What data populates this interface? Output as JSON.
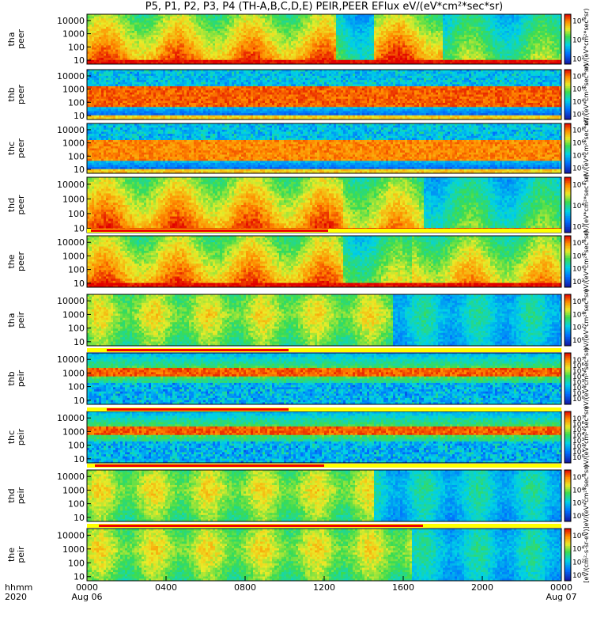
{
  "title": "P5, P1, P2, P3, P4 (TH-A,B,C,D,E) PEIR,PEER EFlux eV/(eV*cm²*sec*sr)",
  "chart_data": [
    {
      "type": "heatmap",
      "ylabel": [
        "tha",
        "peer"
      ],
      "colorbar_ticks": [
        "10⁶",
        "10⁴",
        "10²"
      ],
      "colorbar_label": "eV/(eV*cm²*sec*sr)",
      "profile": "peer_tail",
      "bands": [
        {
          "t0": 0.0,
          "t1": 12.6,
          "level": 0.88
        },
        {
          "t0": 12.6,
          "t1": 14.5,
          "level": 0.55
        },
        {
          "t0": 14.5,
          "t1": 18.0,
          "level": 0.92
        },
        {
          "t0": 18.0,
          "t1": 24.0,
          "level": 0.6
        }
      ]
    },
    {
      "type": "heatmap",
      "ylabel": [
        "thb",
        "peer"
      ],
      "colorbar_ticks": [
        "10⁸",
        "10⁶",
        "10⁴",
        "10²"
      ],
      "colorbar_label": "eV/(eV*cm²*sec*sr)",
      "profile": "peer_band",
      "bands": [
        {
          "t0": 0.0,
          "t1": 24.0,
          "level": 0.9
        }
      ]
    },
    {
      "type": "heatmap",
      "ylabel": [
        "thc",
        "peer"
      ],
      "colorbar_ticks": [
        "10⁸",
        "10⁶",
        "10⁴",
        "10²"
      ],
      "colorbar_label": "eV/(eV*cm²*sec*sr)",
      "profile": "peer_band",
      "bands": [
        {
          "t0": 0.0,
          "t1": 24.0,
          "level": 0.85
        }
      ]
    },
    {
      "type": "heatmap",
      "ylabel": [
        "thd",
        "peer"
      ],
      "colorbar_ticks": [
        "10⁶",
        "10⁴",
        "10²"
      ],
      "colorbar_label": "eV/(eV*cm²*sec*sr)",
      "profile": "peer_tail",
      "bands": [
        {
          "t0": 0.0,
          "t1": 13.0,
          "level": 0.9
        },
        {
          "t0": 13.0,
          "t1": 17.0,
          "level": 0.8
        },
        {
          "t0": 17.0,
          "t1": 24.0,
          "level": 0.55
        }
      ]
    },
    {
      "type": "heatmap",
      "ylabel": [
        "the",
        "peer"
      ],
      "colorbar_ticks": [
        "10⁸",
        "10⁶",
        "10⁴",
        "10²"
      ],
      "colorbar_label": "eV/(eV*cm²*sec*sr)",
      "profile": "peer_tail",
      "bands": [
        {
          "t0": 0.0,
          "t1": 13.0,
          "level": 0.88
        },
        {
          "t0": 13.0,
          "t1": 16.5,
          "level": 0.65
        },
        {
          "t0": 16.5,
          "t1": 24.0,
          "level": 0.8
        }
      ]
    },
    {
      "type": "heatmap",
      "ylabel": [
        "tha",
        "peir"
      ],
      "colorbar_ticks": [
        "10⁶",
        "10⁴",
        "10²",
        "10⁰"
      ],
      "colorbar_label": "eV/(eV*cm²*sec*sr)",
      "profile": "peir_broad",
      "bands": [
        {
          "t0": 0.0,
          "t1": 15.5,
          "level": 0.75
        },
        {
          "t0": 15.5,
          "t1": 24.0,
          "level": 0.45
        }
      ]
    },
    {
      "type": "heatmap",
      "ylabel": [
        "thb",
        "peir"
      ],
      "colorbar_ticks": [
        "10⁷",
        "10⁶",
        "10⁵",
        "10⁴",
        "10³",
        "10²",
        "10¹",
        "10⁰"
      ],
      "colorbar_label": "eV/(eV*cm²*sec*sr)",
      "profile": "peir_band",
      "bands": [
        {
          "t0": 0.0,
          "t1": 24.0,
          "level": 0.9
        }
      ]
    },
    {
      "type": "heatmap",
      "ylabel": [
        "thc",
        "peir"
      ],
      "colorbar_ticks": [
        "10⁷",
        "10⁶",
        "10⁵",
        "10⁴",
        "10³",
        "10²",
        "10¹",
        "10⁰"
      ],
      "colorbar_label": "eV/(eV*cm²*sec*sr)",
      "profile": "peir_band",
      "bands": [
        {
          "t0": 0.0,
          "t1": 24.0,
          "level": 0.9
        }
      ]
    },
    {
      "type": "heatmap",
      "ylabel": [
        "thd",
        "peir"
      ],
      "colorbar_ticks": [
        "10⁶",
        "10⁴",
        "10²",
        "10⁰"
      ],
      "colorbar_label": "eV/(eV*cm²*sec*sr)",
      "profile": "peir_broad",
      "bands": [
        {
          "t0": 0.0,
          "t1": 14.5,
          "level": 0.75
        },
        {
          "t0": 14.5,
          "t1": 24.0,
          "level": 0.45
        }
      ]
    },
    {
      "type": "heatmap",
      "ylabel": [
        "the",
        "peir"
      ],
      "colorbar_ticks": [
        "10⁶",
        "10⁴",
        "10²",
        "10⁰"
      ],
      "colorbar_label": "[eV/(cm²-s-sr-eV)]",
      "profile": "peir_broad",
      "bands": [
        {
          "t0": 0.0,
          "t1": 16.5,
          "level": 0.75
        },
        {
          "t0": 16.5,
          "t1": 24.0,
          "level": 0.45
        }
      ]
    }
  ],
  "yaxis": {
    "scale": "log",
    "range": [
      5,
      30000
    ],
    "ticks": [
      "10000",
      "1000",
      "100",
      "10"
    ]
  },
  "xaxis": {
    "range_hours": [
      0,
      24
    ],
    "tick_labels": [
      "0000",
      "0400",
      "0800",
      "1200",
      "1600",
      "2000",
      "0000"
    ],
    "date_labels": [
      "Aug 06",
      "Aug 07"
    ],
    "corner_labels": [
      "hhmm",
      "2020"
    ]
  },
  "colors": {
    "bar_red": "#ee0000",
    "bar_yellow": "#ffff00",
    "axis": "#000000"
  }
}
